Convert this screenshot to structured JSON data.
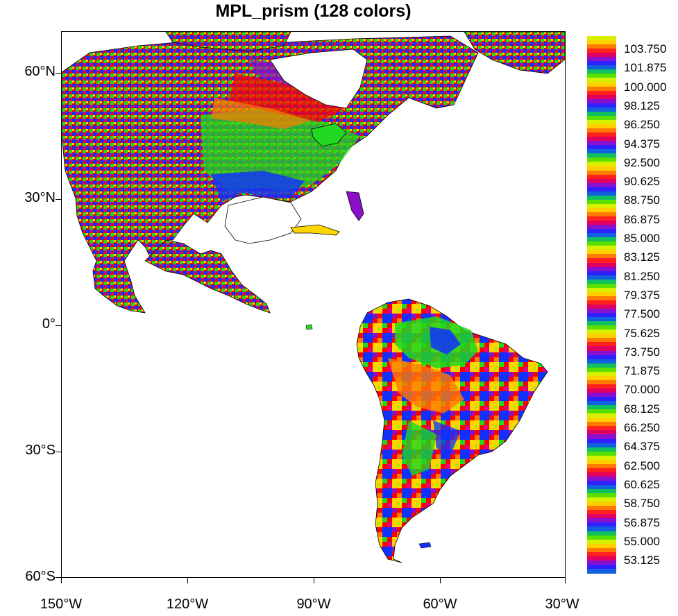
{
  "title": "MPL_prism (128 colors)",
  "map": {
    "projection": "cylindrical-equidistant",
    "lon_range": [
      -150,
      -30
    ],
    "lat_range": [
      -60,
      70
    ],
    "lat_ticks": [
      {
        "value": 60,
        "label": "60°N"
      },
      {
        "value": 30,
        "label": "30°N"
      },
      {
        "value": 0,
        "label": "0°"
      },
      {
        "value": -30,
        "label": "30°S"
      },
      {
        "value": -60,
        "label": "60°S"
      }
    ],
    "lon_ticks": [
      {
        "value": -150,
        "label": "150°W"
      },
      {
        "value": -120,
        "label": "120°W"
      },
      {
        "value": -90,
        "label": "90°W"
      },
      {
        "value": -60,
        "label": "60°W"
      },
      {
        "value": -30,
        "label": "30°W"
      }
    ],
    "palette": [
      "#ff0000",
      "#ff7a00",
      "#ffd400",
      "#9cf000",
      "#1fd81f",
      "#0f8f6f",
      "#1030ff",
      "#8a10c8",
      "#e00080"
    ]
  },
  "colorbar": {
    "labels": [
      "103.750",
      "101.875",
      "100.000",
      "98.125",
      "96.250",
      "94.375",
      "92.500",
      "90.625",
      "88.750",
      "86.875",
      "85.000",
      "83.125",
      "81.250",
      "79.375",
      "77.500",
      "75.625",
      "73.750",
      "71.875",
      "70.000",
      "68.125",
      "66.250",
      "64.375",
      "62.500",
      "60.625",
      "58.750",
      "56.875",
      "55.000",
      "53.125"
    ],
    "color_cycle": [
      "#ff2020",
      "#ff7a00",
      "#ffd000",
      "#d8f000",
      "#5ae000",
      "#10c060",
      "#1060e0",
      "#3020ff",
      "#8a10d0",
      "#e00060"
    ]
  }
}
